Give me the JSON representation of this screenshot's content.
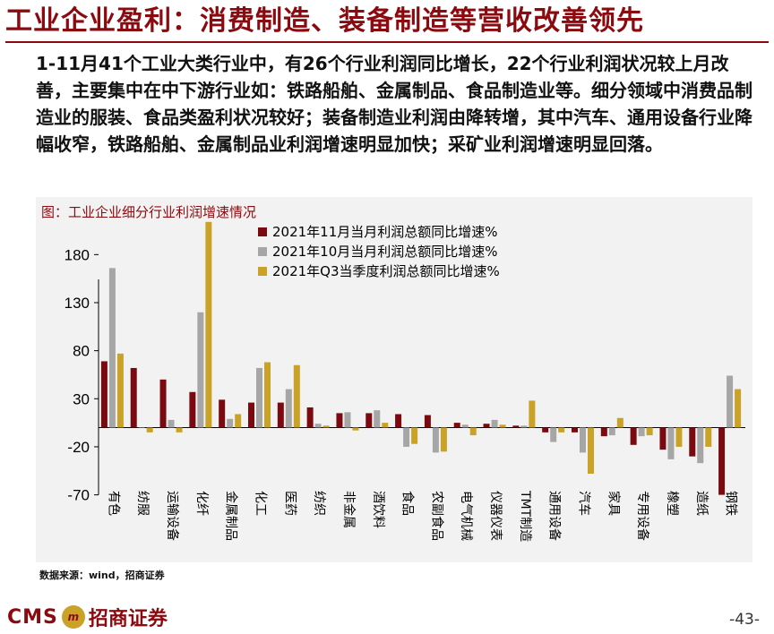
{
  "slide": {
    "title": "工业企业盈利：消费制造、装备制造等营收改善领先",
    "summary": "1-11月41个工业大类行业中，有26个行业利润同比增长，22个行业利润状况较上月改善，主要集中在中下游行业如：铁路船舶、金属制品、食品制造业等。细分领域中消费品制造业的服装、食品类盈利状况较好；装备制造业利润由降转增，其中汽车、通用设备行业降幅收窄，铁路船舶、金属制品业利润增速明显加快；采矿业利润增速明显回落。",
    "source": "数据来源：wind，招商证券",
    "page_number": "-43-",
    "logo": {
      "cms_text": "CMS",
      "mark_text": "m",
      "name": "招商证券"
    }
  },
  "colors": {
    "title": "#8b0a0f",
    "series": [
      "#7b0a10",
      "#a6a6a6",
      "#c9a227"
    ],
    "chart_bg": "#f2f2f2"
  },
  "chart_data": {
    "type": "bar",
    "title": "图：工业企业细分行业利润增速情况",
    "xlabel": "",
    "ylabel": "",
    "ylim": [
      -70,
      220
    ],
    "yticks": [
      180,
      130,
      80,
      30,
      -20,
      -70
    ],
    "legend_position": "top-center",
    "grid": false,
    "categories": [
      "有色",
      "纺服",
      "运输设备",
      "化纤",
      "金属制品",
      "化工",
      "医药",
      "纺织",
      "非金属",
      "酒饮料",
      "食品",
      "农副食品",
      "电气机械",
      "仪器仪表",
      "TMT制造",
      "通用设备",
      "汽车",
      "家具",
      "专用设备",
      "橡塑",
      "造纸",
      "钢铁"
    ],
    "series": [
      {
        "name": "2021年11月当月利润总额同比增速%",
        "values": [
          69,
          62,
          50,
          37,
          29,
          26,
          26,
          21,
          15,
          15,
          14,
          13,
          5,
          4,
          2,
          -5,
          -5,
          -9,
          -18,
          -23,
          -30,
          -70
        ]
      },
      {
        "name": "2021年10月当月利润总额同比增速%",
        "values": [
          166,
          0,
          8,
          120,
          9,
          62,
          40,
          4,
          16,
          18,
          -20,
          -26,
          3,
          8,
          2,
          -15,
          -26,
          -8,
          -9,
          -33,
          -37,
          54
        ]
      },
      {
        "name": "2021年Q3当季度利润总额同比增速%",
        "values": [
          77,
          -5,
          -5,
          214,
          14,
          68,
          65,
          2,
          -3,
          5,
          -17,
          -25,
          -8,
          3,
          28,
          -5,
          -48,
          10,
          -8,
          -20,
          -20,
          40
        ]
      }
    ]
  }
}
